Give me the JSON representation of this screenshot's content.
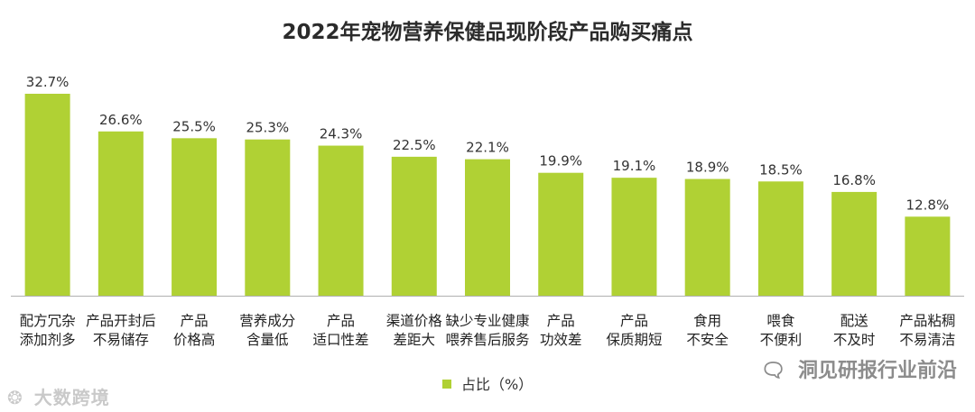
{
  "chart_data": {
    "type": "bar",
    "title": "2022年宠物营养保健品现阶段产品购买痛点",
    "categories": [
      [
        "配方冗杂",
        "添加剂多"
      ],
      [
        "产品开封后",
        "不易储存"
      ],
      [
        "产品",
        "价格高"
      ],
      [
        "营养成分",
        "含量低"
      ],
      [
        "产品",
        "适口性差"
      ],
      [
        "渠道价格",
        "差距大"
      ],
      [
        "缺少专业健康",
        "喂养售后服务"
      ],
      [
        "产品",
        "功效差"
      ],
      [
        "产品",
        "保质期短"
      ],
      [
        "食用",
        "不安全"
      ],
      [
        "喂食",
        "不便利"
      ],
      [
        "配送",
        "不及时"
      ],
      [
        "产品粘稠",
        "不易清洁"
      ]
    ],
    "series": [
      {
        "name": "占比（%）",
        "values": [
          32.7,
          26.6,
          25.5,
          25.3,
          24.3,
          22.5,
          22.1,
          19.9,
          19.1,
          18.9,
          18.5,
          16.8,
          12.8
        ],
        "labels": [
          "32.7%",
          "26.6%",
          "25.5%",
          "25.3%",
          "24.3%",
          "22.5%",
          "22.1%",
          "19.9%",
          "19.1%",
          "18.9%",
          "18.5%",
          "16.8%",
          "12.8%"
        ]
      }
    ],
    "xlabel": "",
    "ylabel": "",
    "ylim": [
      0,
      32.7
    ],
    "grid": false,
    "legend_position": "bottom-center",
    "bar_color": "#b0d134",
    "axis_color": "#b0b0b0"
  },
  "legend": {
    "label": "占比（%）"
  },
  "watermarks": {
    "left_text": "大数跨境",
    "left_icon": "logo-icon",
    "right_text": "洞见研报行业前沿",
    "right_icon": "wechat-icon"
  }
}
